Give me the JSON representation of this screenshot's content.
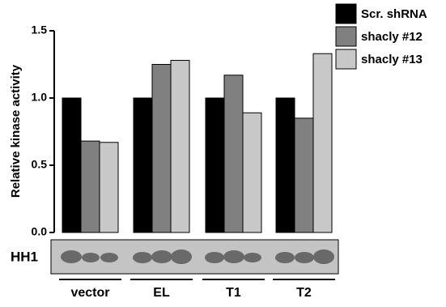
{
  "chart_data": {
    "type": "bar",
    "y_label": "Relative kinase activity",
    "blot_label": "HH1",
    "categories": [
      "vector",
      "EL",
      "T1",
      "T2"
    ],
    "series": [
      {
        "name": "Scr. shRNA",
        "color": "#000000",
        "values": [
          1.0,
          1.0,
          1.0,
          1.0
        ]
      },
      {
        "name": "shacly #12",
        "color": "#808080",
        "values": [
          0.68,
          1.25,
          1.17,
          0.85
        ]
      },
      {
        "name": "shacly #13",
        "color": "#c8c8c8",
        "values": [
          0.67,
          1.28,
          0.89,
          1.33
        ]
      }
    ],
    "ylim": [
      0,
      1.5
    ],
    "yticks": [
      {
        "value": 0,
        "label": "0.0"
      },
      0.5,
      {
        "value": 1,
        "label": "1.0"
      },
      1.5
    ]
  }
}
